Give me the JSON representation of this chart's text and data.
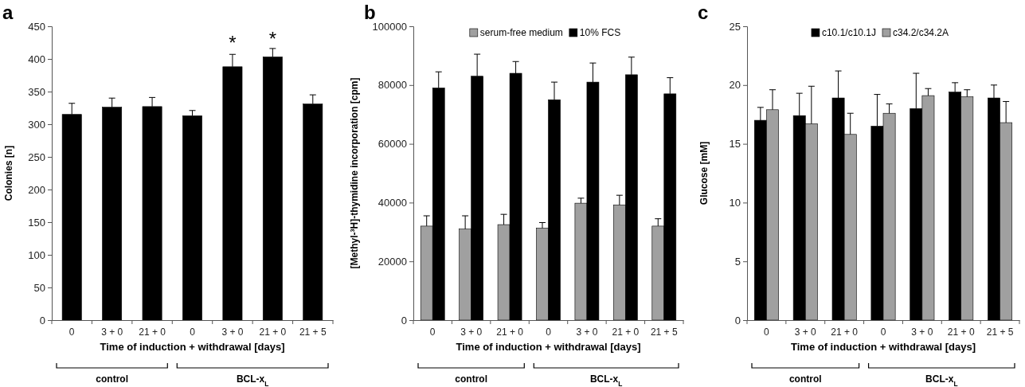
{
  "chart_data": [
    {
      "type": "bar",
      "title": "a",
      "xlabel": "Time of induction + withdrawal [days]",
      "ylabel": "Colonies [n]",
      "categories": [
        "0",
        "3 + 0",
        "21 + 0",
        "0",
        "3 + 0",
        "21 + 0",
        "21 + 5"
      ],
      "series": [
        {
          "color": "#000000",
          "values": [
            315,
            326,
            327,
            313,
            388,
            403,
            331
          ],
          "errors": [
            [
              315,
              332
            ],
            [
              326,
              340
            ],
            [
              327,
              341
            ],
            [
              313,
              321
            ],
            [
              388,
              407
            ],
            [
              403,
              416
            ],
            [
              331,
              345
            ]
          ]
        }
      ],
      "ylim": [
        0,
        450
      ],
      "yticks": [
        0,
        50,
        100,
        150,
        200,
        250,
        300,
        350,
        400,
        450
      ],
      "grid": false,
      "legend": false,
      "annotations": [
        "*",
        "*",
        "control",
        "BCL-x$_{L}$"
      ]
    },
    {
      "type": "bar",
      "title": "b",
      "xlabel": "Time of induction + withdrawal [days]",
      "ylabel": "[Methyl-³H]-thymidine incorporation [cpm]",
      "categories": [
        "0",
        "3 + 0",
        "21 + 0",
        "0",
        "3 + 0",
        "21 + 0",
        "21 + 5"
      ],
      "series": [
        {
          "name": "serum-free medium",
          "color": "#a0a0a0",
          "values": [
            32000,
            31000,
            32500,
            31300,
            39800,
            39200,
            32000
          ],
          "errors": [
            [
              32000,
              35500
            ],
            [
              31000,
              35500
            ],
            [
              32500,
              36000
            ],
            [
              31300,
              33200
            ],
            [
              39800,
              41500
            ],
            [
              39200,
              42500
            ],
            [
              32000,
              34500
            ]
          ]
        },
        {
          "name": "10% FCS",
          "color": "#000000",
          "values": [
            79000,
            83000,
            84000,
            75000,
            81000,
            83500,
            77000
          ],
          "errors": [
            [
              79000,
              84500
            ],
            [
              83000,
              90500
            ],
            [
              84000,
              88000
            ],
            [
              75000,
              81000
            ],
            [
              81000,
              87500
            ],
            [
              83500,
              89500
            ],
            [
              77000,
              82500
            ]
          ]
        }
      ],
      "ylim": [
        0,
        100000
      ],
      "yticks": [
        0,
        20000,
        40000,
        60000,
        80000,
        100000
      ],
      "grid": false,
      "legend": "top",
      "annotations": [
        "control",
        "BCL-x$_{L}$"
      ]
    },
    {
      "type": "bar",
      "title": "c",
      "xlabel": "Time of induction + withdrawal [days]",
      "ylabel": "Glucose [mM]",
      "categories": [
        "0",
        "3 + 0",
        "21 + 0",
        "0",
        "3 + 0",
        "21 + 0",
        "21 + 5"
      ],
      "series": [
        {
          "name": "c10.1/c10.1J",
          "color": "#000000",
          "values": [
            17.0,
            17.4,
            18.9,
            16.5,
            18.0,
            19.4,
            18.9
          ],
          "errors": [
            [
              17.0,
              18.1
            ],
            [
              17.4,
              19.3
            ],
            [
              18.9,
              21.2
            ],
            [
              16.5,
              19.2
            ],
            [
              18.0,
              21.0
            ],
            [
              19.4,
              20.2
            ],
            [
              18.9,
              20.0
            ]
          ]
        },
        {
          "name": "c34.2/c34.2A",
          "color": "#a0a0a0",
          "values": [
            17.9,
            16.7,
            15.8,
            17.6,
            19.1,
            19.0,
            16.8
          ],
          "errors": [
            [
              17.9,
              19.6
            ],
            [
              16.7,
              19.9
            ],
            [
              15.8,
              17.6
            ],
            [
              17.6,
              18.4
            ],
            [
              19.1,
              19.7
            ],
            [
              19.0,
              19.6
            ],
            [
              16.8,
              18.6
            ]
          ]
        }
      ],
      "ylim": [
        0,
        25
      ],
      "yticks": [
        0,
        5,
        10,
        15,
        20,
        25
      ],
      "grid": false,
      "legend": "top",
      "annotations": [
        "control",
        "BCL-x$_{L}$"
      ]
    }
  ]
}
